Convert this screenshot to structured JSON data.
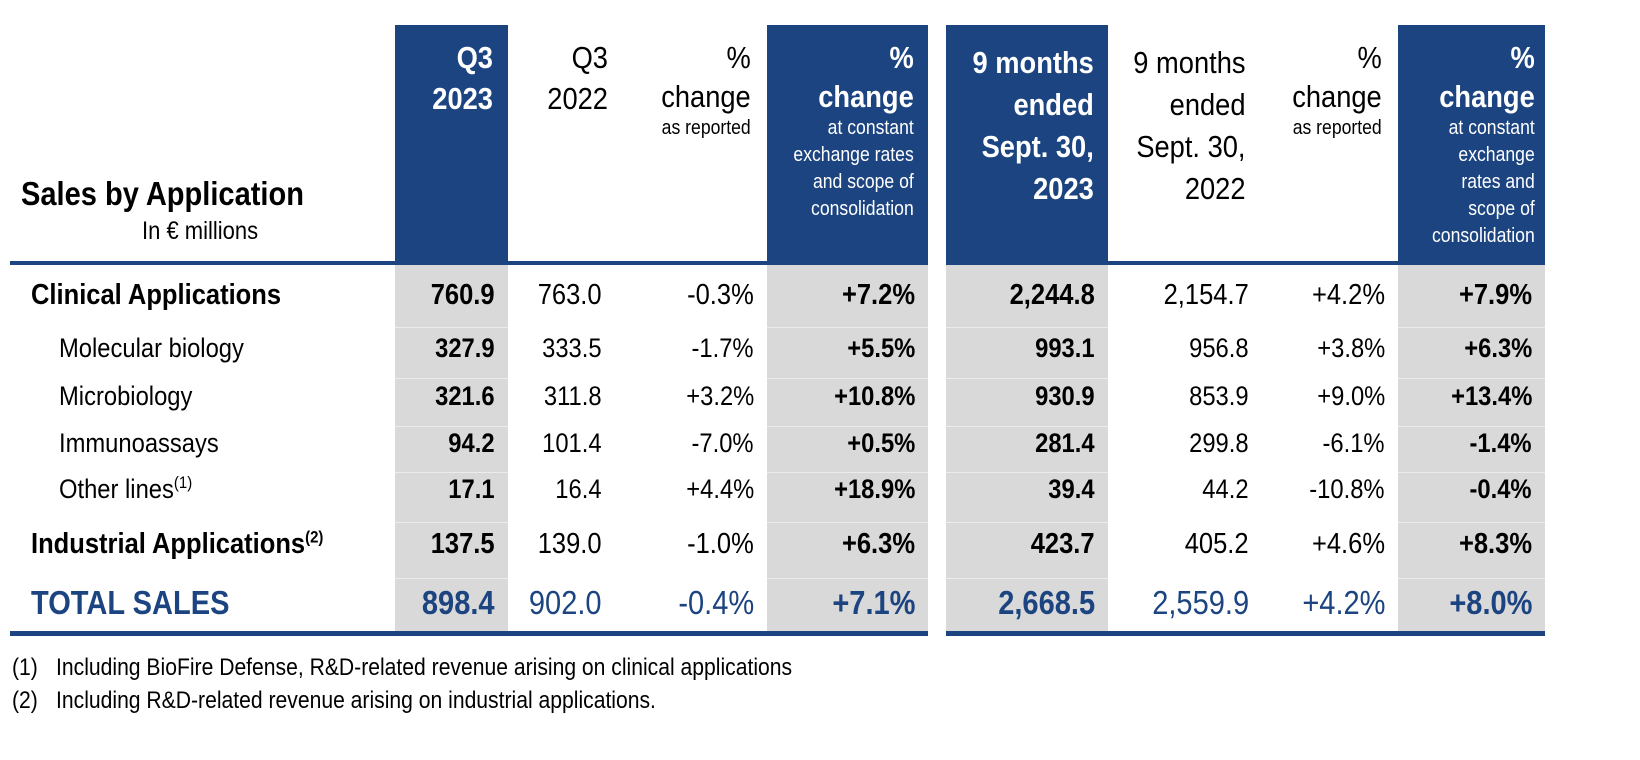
{
  "table": {
    "title": "Sales by Application",
    "subtitle": "In € millions",
    "columns": [
      {
        "id": "q3_2023",
        "lines": [
          "Q3",
          "2023"
        ],
        "sub": [],
        "highlight": true
      },
      {
        "id": "q3_2022",
        "lines": [
          "Q3",
          "2022"
        ],
        "sub": [],
        "highlight": false
      },
      {
        "id": "q3_pct_reported",
        "lines": [
          "%",
          "change"
        ],
        "sub": [
          "as reported"
        ],
        "highlight": false
      },
      {
        "id": "q3_pct_constant",
        "lines": [
          "%",
          "change"
        ],
        "sub": [
          "at constant",
          "exchange rates",
          "and scope of",
          "consolidation"
        ],
        "highlight": true
      },
      {
        "id": "9m_2023",
        "lines": [
          "9 months",
          "ended",
          "Sept. 30,",
          "2023"
        ],
        "sub": [],
        "highlight": true
      },
      {
        "id": "9m_2022",
        "lines": [
          "9 months",
          "ended",
          "Sept. 30,",
          "2022"
        ],
        "sub": [],
        "highlight": false
      },
      {
        "id": "9m_pct_reported",
        "lines": [
          "%",
          "change"
        ],
        "sub": [
          "as reported"
        ],
        "highlight": false
      },
      {
        "id": "9m_pct_constant",
        "lines": [
          "%",
          "change"
        ],
        "sub": [
          "at constant",
          "exchange",
          "rates and",
          "scope of",
          "consolidation"
        ],
        "highlight": true
      }
    ],
    "rows": [
      {
        "label": "Clinical Applications",
        "note": "",
        "style": "category",
        "values": [
          "760.9",
          "763.0",
          "-0.3%",
          "+7.2%",
          "2,244.8",
          "2,154.7",
          "+4.2%",
          "+7.9%"
        ]
      },
      {
        "label": "Molecular biology",
        "note": "",
        "style": "sub",
        "values": [
          "327.9",
          "333.5",
          "-1.7%",
          "+5.5%",
          "993.1",
          "956.8",
          "+3.8%",
          "+6.3%"
        ]
      },
      {
        "label": "Microbiology",
        "note": "",
        "style": "sub",
        "values": [
          "321.6",
          "311.8",
          "+3.2%",
          "+10.8%",
          "930.9",
          "853.9",
          "+9.0%",
          "+13.4%"
        ]
      },
      {
        "label": "Immunoassays",
        "note": "",
        "style": "sub",
        "values": [
          "94.2",
          "101.4",
          "-7.0%",
          "+0.5%",
          "281.4",
          "299.8",
          "-6.1%",
          "-1.4%"
        ]
      },
      {
        "label": "Other lines",
        "note": "(1)",
        "style": "sub",
        "values": [
          "17.1",
          "16.4",
          "+4.4%",
          "+18.9%",
          "39.4",
          "44.2",
          "-10.8%",
          "-0.4%"
        ]
      },
      {
        "label": "Industrial Applications",
        "note": "(2)",
        "style": "category",
        "values": [
          "137.5",
          "139.0",
          "-1.0%",
          "+6.3%",
          "423.7",
          "405.2",
          "+4.6%",
          "+8.3%"
        ]
      },
      {
        "label": "TOTAL SALES",
        "note": "",
        "style": "total",
        "values": [
          "898.4",
          "902.0",
          "-0.4%",
          "+7.1%",
          "2,668.5",
          "2,559.9",
          "+4.2%",
          "+8.0%"
        ]
      }
    ],
    "footnotes": [
      {
        "marker": "(1)",
        "text": "Including BioFire Defense, R&D-related revenue arising on clinical applications"
      },
      {
        "marker": "(2)",
        "text": "Including R&D-related revenue arising on industrial applications."
      }
    ]
  },
  "colors": {
    "accent": "#1b4480",
    "highlight_body": "#d9d9d9"
  }
}
